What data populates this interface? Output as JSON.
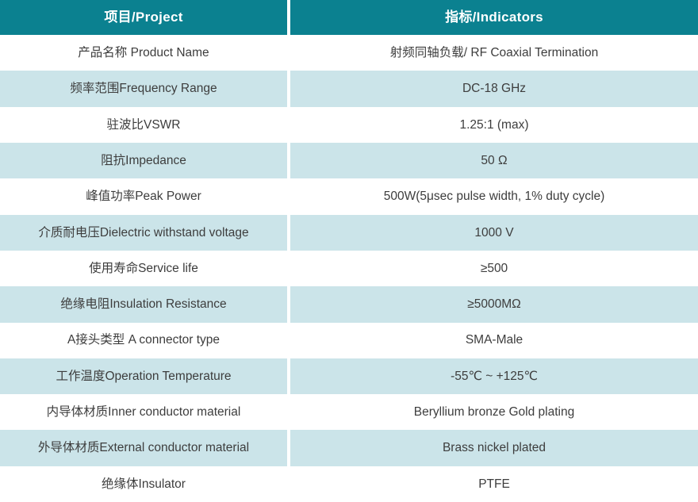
{
  "table": {
    "header": {
      "project": "项目/Project",
      "indicators": "指标/Indicators"
    },
    "rows": [
      {
        "project": "产品名称 Product Name",
        "indicator": "射频同轴负载/ RF Coaxial Termination"
      },
      {
        "project": "频率范围Frequency Range",
        "indicator": "DC-18 GHz"
      },
      {
        "project": "驻波比VSWR",
        "indicator": "1.25:1 (max)"
      },
      {
        "project": "阻抗Impedance",
        "indicator": "50 Ω"
      },
      {
        "project": "峰值功率Peak Power",
        "indicator": "500W(5μsec pulse width, 1% duty cycle)"
      },
      {
        "project": "介质耐电压Dielectric withstand voltage",
        "indicator": "1000 V"
      },
      {
        "project": "使用寿命Service life",
        "indicator": "≥500"
      },
      {
        "project": "绝缘电阻Insulation Resistance",
        "indicator": "≥5000MΩ"
      },
      {
        "project": "A接头类型 A connector type",
        "indicator": "SMA-Male"
      },
      {
        "project": "工作温度Operation Temperature",
        "indicator": "-55℃ ~ +125℃"
      },
      {
        "project": "内导体材质Inner conductor material",
        "indicator": "Beryllium bronze Gold plating"
      },
      {
        "project": "外导体材质External conductor material",
        "indicator": "Brass nickel plated"
      },
      {
        "project": "绝缘体Insulator",
        "indicator": "PTFE"
      }
    ]
  },
  "colors": {
    "header_bg": "#0b8190",
    "header_text": "#ffffff",
    "row_alt_bg": "#cbe4e9",
    "row_bg": "#ffffff",
    "body_text": "#3d3d3d"
  }
}
